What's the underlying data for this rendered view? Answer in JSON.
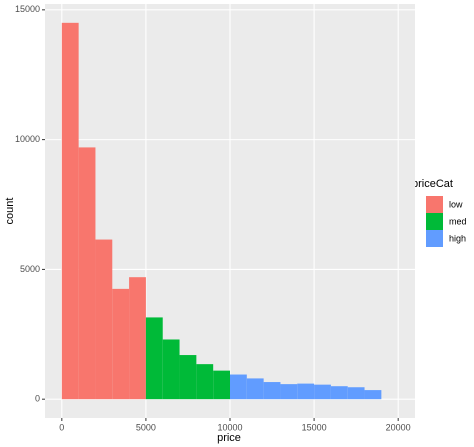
{
  "chart_data": {
    "type": "histogram",
    "x_label": "price",
    "y_label": "count",
    "legend_title": "priceCat",
    "bins": [
      0,
      1000,
      2000,
      3000,
      4000,
      5000,
      6000,
      7000,
      8000,
      9000,
      10000,
      11000,
      12000,
      13000,
      14000,
      15000,
      16000,
      17000,
      18000,
      19000
    ],
    "series": [
      {
        "name": "low",
        "color": "#F8766D",
        "values": [
          14500,
          9700,
          6150,
          4250,
          4700,
          0,
          0,
          0,
          0,
          0,
          0,
          0,
          0,
          0,
          0,
          0,
          0,
          0,
          0
        ]
      },
      {
        "name": "med",
        "color": "#00BA38",
        "values": [
          0,
          0,
          0,
          0,
          0,
          3150,
          2300,
          1700,
          1350,
          1100,
          0,
          0,
          0,
          0,
          0,
          0,
          0,
          0,
          0
        ]
      },
      {
        "name": "high",
        "color": "#619CFF",
        "values": [
          0,
          0,
          0,
          0,
          0,
          0,
          0,
          0,
          0,
          0,
          950,
          800,
          660,
          580,
          600,
          560,
          500,
          460,
          350
        ]
      }
    ],
    "xlim": [
      -1000,
      21000
    ],
    "ylim": [
      -725,
      15225
    ],
    "xticks": [
      0,
      5000,
      10000,
      15000,
      20000
    ],
    "yticks": [
      0,
      5000,
      10000,
      15000
    ],
    "grid": true,
    "legend": "right"
  }
}
